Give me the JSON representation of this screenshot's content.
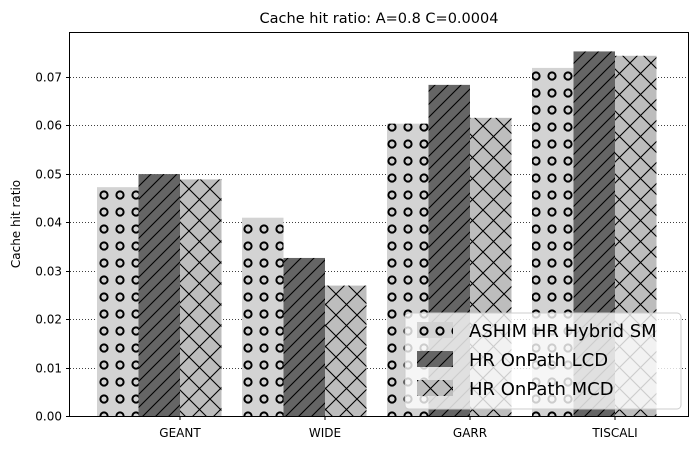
{
  "chart_data": {
    "type": "bar",
    "title": "Cache hit ratio: A=0.8 C=0.0004",
    "xlabel": "",
    "ylabel": "Cache hit ratio",
    "categories": [
      "GEANT",
      "WIDE",
      "GARR",
      "TISCALI"
    ],
    "ylim": [
      0,
      0.079
    ],
    "yticks": [
      "0.00",
      "0.01",
      "0.02",
      "0.03",
      "0.04",
      "0.05",
      "0.06",
      "0.07"
    ],
    "ytick_values": [
      0,
      0.01,
      0.02,
      0.03,
      0.04,
      0.05,
      0.06,
      0.07
    ],
    "grid": "horizontal dotted",
    "legend_position": "bottom-right",
    "series": [
      {
        "name": "ASHIM HR Hybrid SM",
        "values": [
          0.0472,
          0.0409,
          0.0603,
          0.0718
        ],
        "color": "#d3d3d3",
        "hatch": "circles"
      },
      {
        "name": "HR OnPath LCD",
        "values": [
          0.0499,
          0.0326,
          0.0683,
          0.0752
        ],
        "color": "#656565",
        "hatch": "diagonal"
      },
      {
        "name": "HR OnPath MCD",
        "values": [
          0.0488,
          0.0269,
          0.0615,
          0.0743
        ],
        "color": "#bdbdbd",
        "hatch": "crosshatch"
      }
    ]
  }
}
